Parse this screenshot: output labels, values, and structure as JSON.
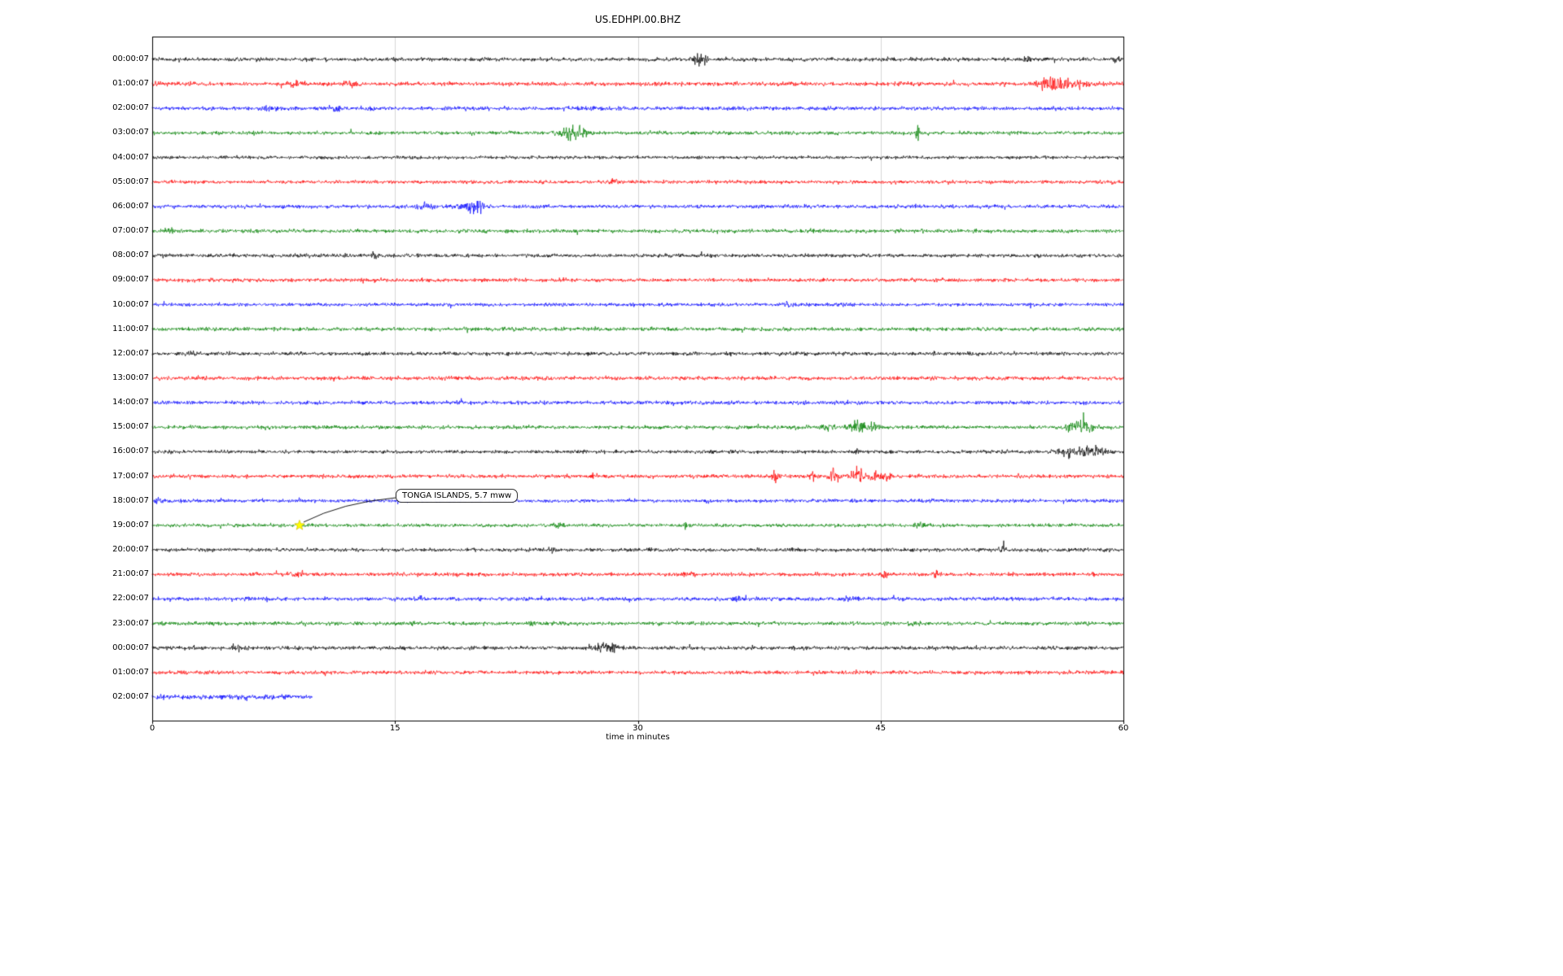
{
  "chart_data": {
    "type": "line",
    "subtype": "seismogram-helicorder",
    "title": "US.EDHPI.00.BHZ",
    "xlabel": "time in minutes",
    "xlim": [
      0,
      60
    ],
    "x_ticks": [
      "0",
      "15",
      "30",
      "45",
      "60"
    ],
    "x_tick_values": [
      0,
      15,
      30,
      45,
      60
    ],
    "grid": true,
    "grid_color": "#cccccc",
    "frame_color": "#000000",
    "background_color": "#ffffff",
    "trace_colors_cycle": [
      "#000000",
      "#ff0000",
      "#0000ff",
      "#008000"
    ],
    "rows": [
      {
        "label": "00:00:07",
        "color": "#000000",
        "base_amp": 3.0,
        "duration": 60,
        "events": [
          [
            33.9,
            11,
            0.25
          ],
          [
            54.0,
            4,
            0.12
          ],
          [
            59.6,
            6,
            0.1
          ]
        ]
      },
      {
        "label": "01:00:07",
        "color": "#ff0000",
        "base_amp": 3.0,
        "duration": 60,
        "events": [
          [
            0.5,
            3,
            0.3
          ],
          [
            9.0,
            4,
            0.4
          ],
          [
            12.3,
            4,
            0.3
          ],
          [
            55.3,
            9,
            0.45
          ],
          [
            56.2,
            8,
            0.35
          ],
          [
            57.4,
            6,
            0.4
          ]
        ]
      },
      {
        "label": "02:00:07",
        "color": "#0000ff",
        "base_amp": 3.0,
        "duration": 60,
        "events": [
          [
            7.0,
            3,
            0.3
          ],
          [
            11.3,
            4,
            0.25
          ],
          [
            13.5,
            3,
            0.2
          ]
        ]
      },
      {
        "label": "03:00:07",
        "color": "#008000",
        "base_amp": 2.8,
        "duration": 60,
        "events": [
          [
            25.9,
            9,
            0.5
          ],
          [
            26.3,
            7,
            0.25
          ],
          [
            47.3,
            13,
            0.07
          ]
        ]
      },
      {
        "label": "04:00:07",
        "color": "#000000",
        "base_amp": 2.5,
        "duration": 60,
        "events": []
      },
      {
        "label": "05:00:07",
        "color": "#ff0000",
        "base_amp": 2.7,
        "duration": 60,
        "events": [
          [
            28.5,
            3,
            0.3
          ]
        ]
      },
      {
        "label": "06:00:07",
        "color": "#0000ff",
        "base_amp": 2.9,
        "duration": 60,
        "events": [
          [
            16.8,
            4,
            0.4
          ],
          [
            19.6,
            8,
            0.45
          ],
          [
            20.1,
            6,
            0.25
          ]
        ]
      },
      {
        "label": "07:00:07",
        "color": "#008000",
        "base_amp": 2.9,
        "duration": 60,
        "events": [
          [
            1.0,
            2.5,
            0.3
          ]
        ]
      },
      {
        "label": "08:00:07",
        "color": "#000000",
        "base_amp": 2.9,
        "duration": 60,
        "events": [
          [
            13.7,
            3,
            0.15
          ]
        ]
      },
      {
        "label": "09:00:07",
        "color": "#ff0000",
        "base_amp": 2.9,
        "duration": 60,
        "events": []
      },
      {
        "label": "10:00:07",
        "color": "#0000ff",
        "base_amp": 2.7,
        "duration": 60,
        "events": [
          [
            39.3,
            3,
            0.2
          ]
        ]
      },
      {
        "label": "11:00:07",
        "color": "#008000",
        "base_amp": 2.9,
        "duration": 60,
        "events": []
      },
      {
        "label": "12:00:07",
        "color": "#000000",
        "base_amp": 2.9,
        "duration": 60,
        "events": [
          [
            2.5,
            3,
            0.2
          ]
        ]
      },
      {
        "label": "13:00:07",
        "color": "#ff0000",
        "base_amp": 3.1,
        "duration": 60,
        "events": []
      },
      {
        "label": "14:00:07",
        "color": "#0000ff",
        "base_amp": 2.9,
        "duration": 60,
        "events": []
      },
      {
        "label": "15:00:07",
        "color": "#008000",
        "base_amp": 2.9,
        "duration": 60,
        "events": [
          [
            41.8,
            5,
            0.3
          ],
          [
            43.6,
            8,
            0.45
          ],
          [
            44.4,
            5,
            0.3
          ],
          [
            57.0,
            8,
            0.45
          ],
          [
            57.8,
            6,
            0.3
          ]
        ]
      },
      {
        "label": "16:00:07",
        "color": "#000000",
        "base_amp": 2.7,
        "duration": 60,
        "events": [
          [
            43.5,
            9,
            0.1
          ],
          [
            56.3,
            6,
            0.35
          ],
          [
            57.2,
            5,
            0.35
          ],
          [
            58.0,
            6,
            0.4
          ],
          [
            58.7,
            5,
            0.3
          ]
        ]
      },
      {
        "label": "17:00:07",
        "color": "#ff0000",
        "base_amp": 2.9,
        "duration": 60,
        "events": [
          [
            27.3,
            3,
            0.2
          ],
          [
            38.5,
            11,
            0.12
          ],
          [
            40.9,
            5,
            0.2
          ],
          [
            42.1,
            10,
            0.22
          ],
          [
            43.6,
            11,
            0.28
          ],
          [
            44.6,
            9,
            0.22
          ],
          [
            45.3,
            7,
            0.28
          ]
        ]
      },
      {
        "label": "18:00:07",
        "color": "#0000ff",
        "base_amp": 2.7,
        "duration": 60,
        "events": [
          [
            0.3,
            3,
            0.2
          ]
        ]
      },
      {
        "label": "19:00:07",
        "color": "#008000",
        "base_amp": 2.7,
        "duration": 60,
        "events": [
          [
            25.1,
            3,
            0.2
          ],
          [
            33.0,
            2.5,
            0.2
          ],
          [
            47.5,
            3,
            0.3
          ]
        ]
      },
      {
        "label": "20:00:07",
        "color": "#000000",
        "base_amp": 2.9,
        "duration": 60,
        "events": [
          [
            24.8,
            3,
            0.2
          ],
          [
            52.5,
            4,
            0.15
          ]
        ]
      },
      {
        "label": "21:00:07",
        "color": "#ff0000",
        "base_amp": 2.9,
        "duration": 60,
        "events": [
          [
            9.0,
            3,
            0.4
          ],
          [
            33.2,
            4,
            0.2
          ],
          [
            45.2,
            4,
            0.15
          ],
          [
            48.4,
            6,
            0.1
          ]
        ]
      },
      {
        "label": "22:00:07",
        "color": "#0000ff",
        "base_amp": 2.9,
        "duration": 60,
        "events": [
          [
            16.5,
            3,
            0.2
          ],
          [
            36.2,
            4,
            0.3
          ],
          [
            43.0,
            3,
            0.3
          ]
        ]
      },
      {
        "label": "23:00:07",
        "color": "#008000",
        "base_amp": 2.9,
        "duration": 60,
        "events": [
          [
            16.0,
            3,
            0.2
          ],
          [
            23.5,
            3,
            0.2
          ],
          [
            47.0,
            3,
            0.3
          ]
        ]
      },
      {
        "label": "00:00:07",
        "color": "#000000",
        "base_amp": 2.9,
        "duration": 60,
        "events": [
          [
            5.5,
            3,
            0.3
          ],
          [
            27.9,
            6,
            0.35
          ],
          [
            28.5,
            4,
            0.2
          ]
        ]
      },
      {
        "label": "01:00:07",
        "color": "#ff0000",
        "base_amp": 2.9,
        "duration": 60,
        "events": []
      },
      {
        "label": "02:00:07",
        "color": "#0000ff",
        "base_amp": 3.6,
        "duration": 9.9,
        "events": []
      }
    ],
    "annotation": {
      "text": "TONGA ISLANDS, 5.7 mww",
      "row": 19,
      "row_label": "19:00:07",
      "x_minutes": 9.1,
      "marker": "star",
      "marker_color": "#ffff00"
    }
  }
}
